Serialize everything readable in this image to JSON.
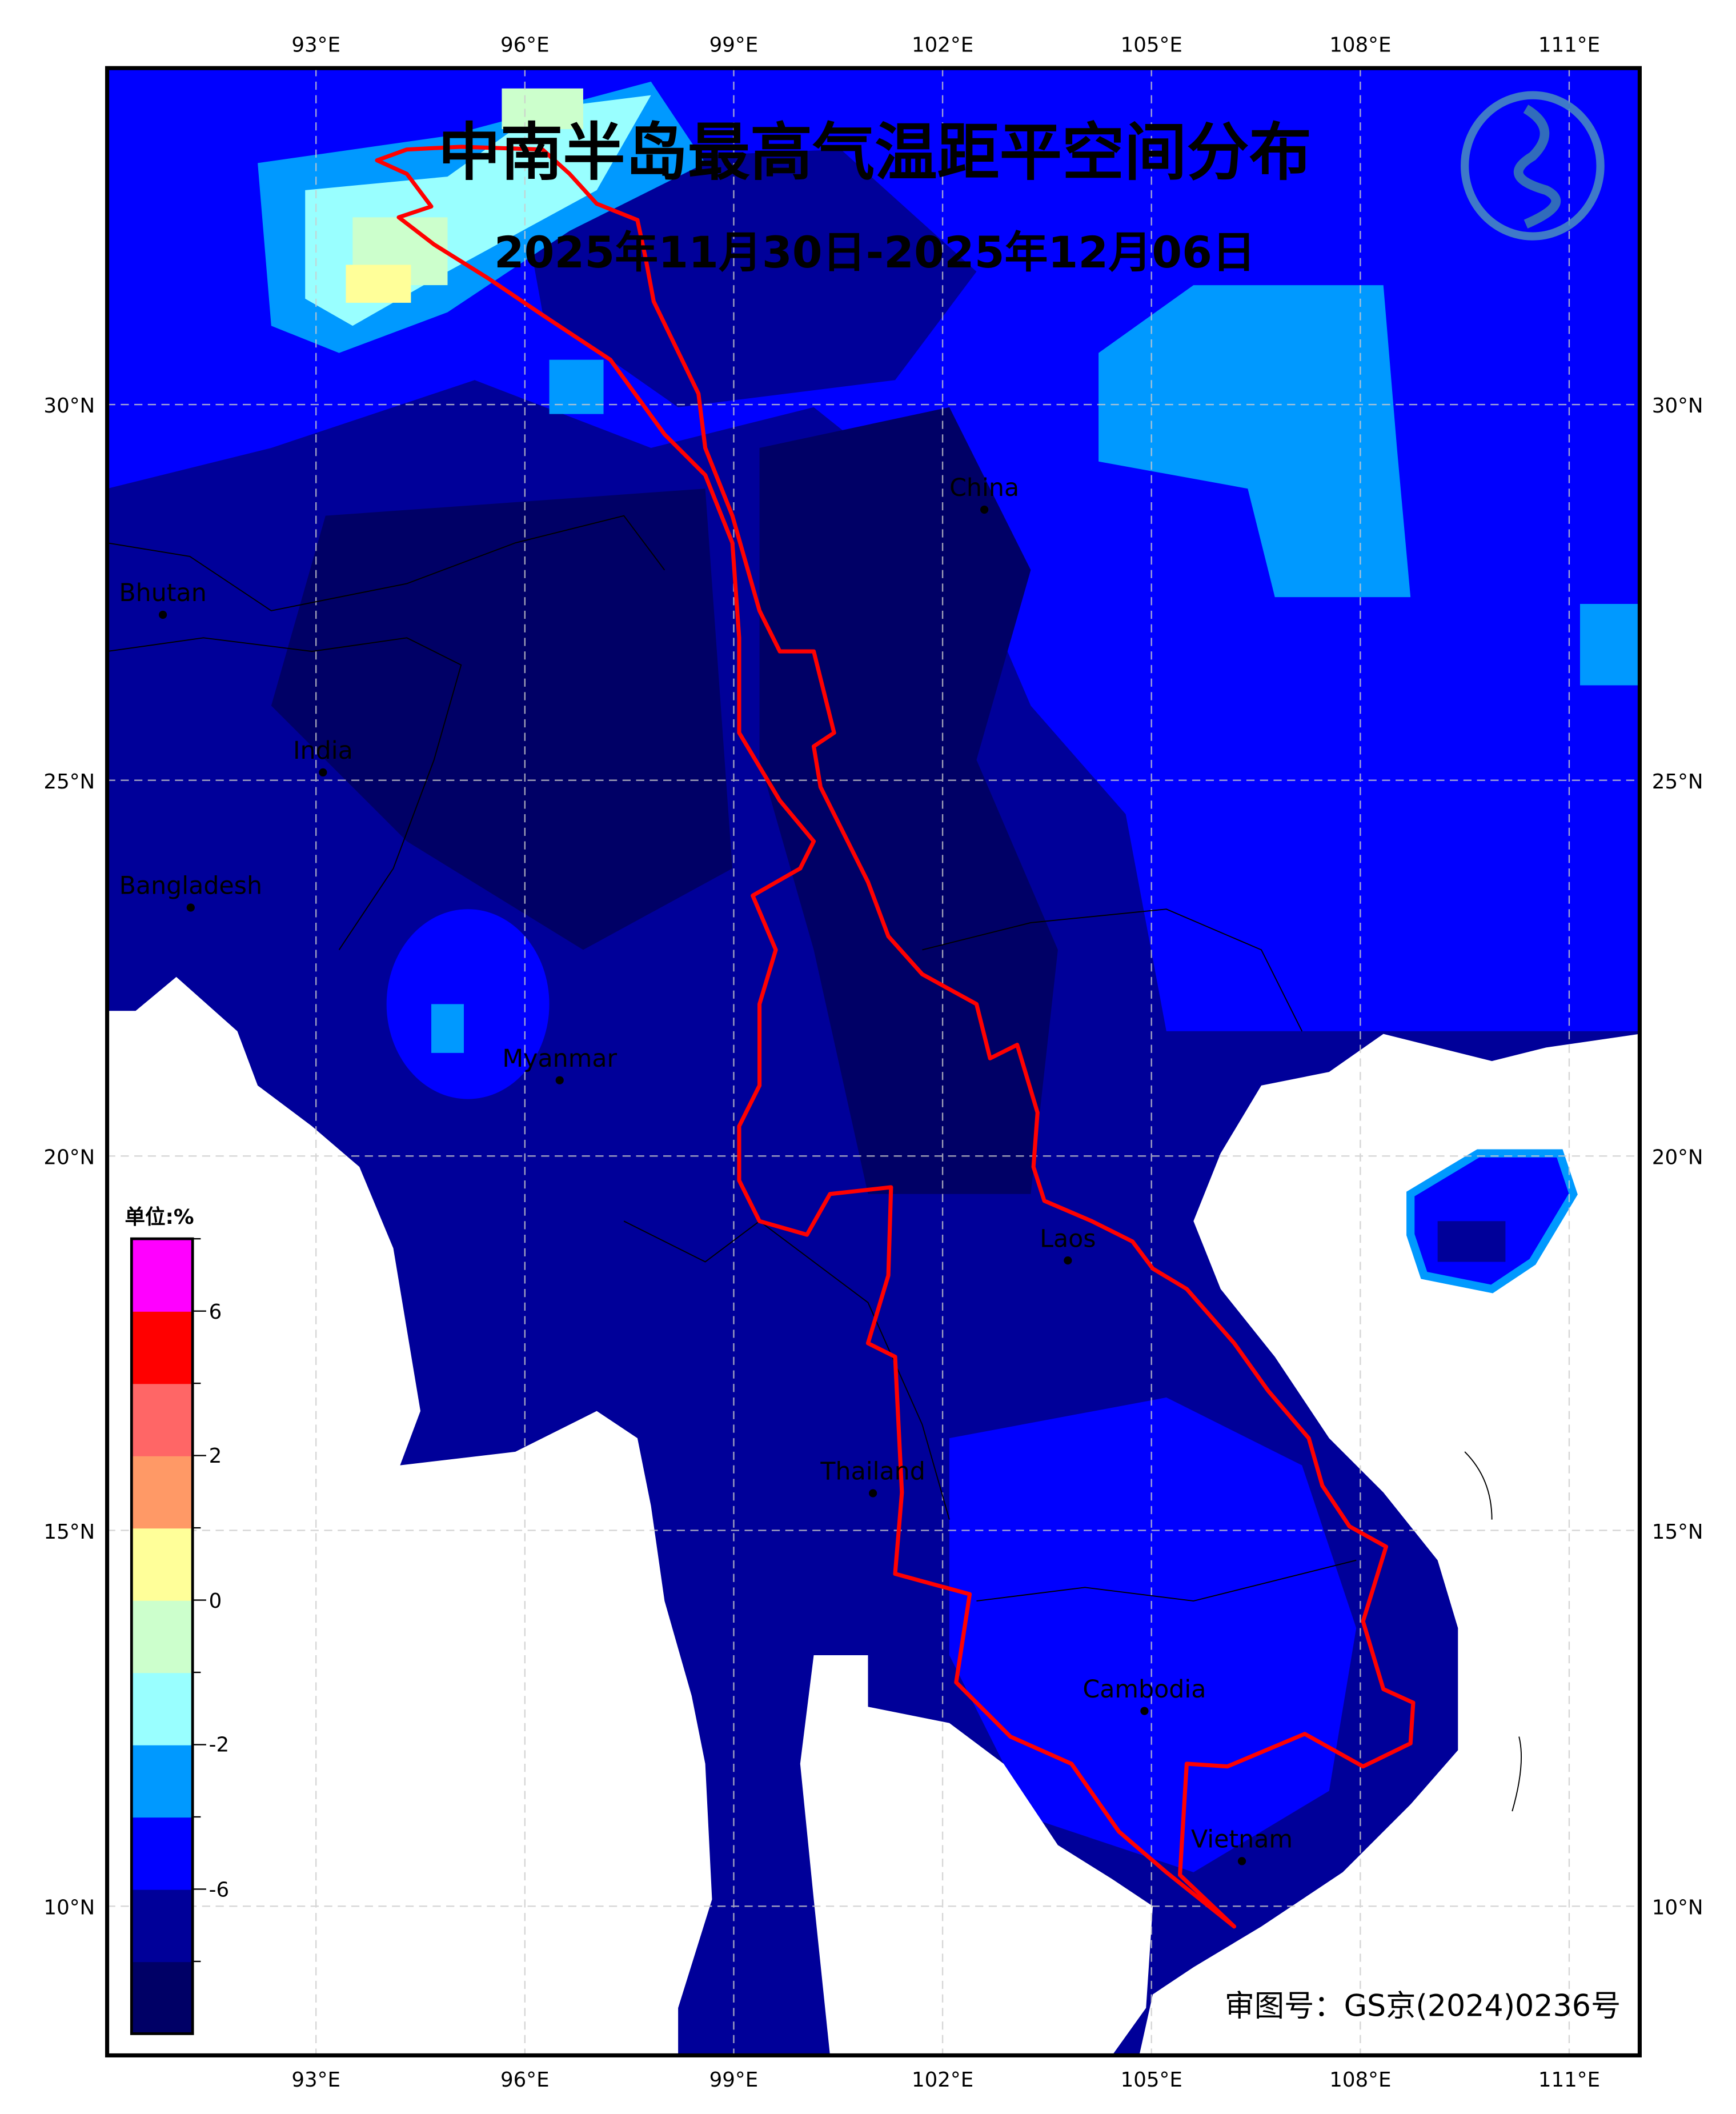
{
  "title": "中南半岛最高气温距平空间分布",
  "subtitle": "2025年11月30日-2025年12月06日",
  "review_number": "审图号：GS京(2024)0236号",
  "logo": {
    "icon": "dragon-emblem-icon"
  },
  "axes": {
    "lon_ticks": [
      "93°E",
      "96°E",
      "99°E",
      "102°E",
      "105°E",
      "108°E",
      "111°E"
    ],
    "lat_ticks": [
      "30°N",
      "25°N",
      "20°N",
      "15°N",
      "10°N"
    ],
    "grid": true
  },
  "places": [
    {
      "name": "China",
      "lon": 102.6,
      "lat": 28.6
    },
    {
      "name": "Bhutan",
      "lon": 90.8,
      "lat": 27.2
    },
    {
      "name": "India",
      "lon": 93.1,
      "lat": 25.1
    },
    {
      "name": "Bangladesh",
      "lon": 91.2,
      "lat": 23.3
    },
    {
      "name": "Myanmar",
      "lon": 96.5,
      "lat": 21.0
    },
    {
      "name": "Laos",
      "lon": 103.8,
      "lat": 18.6
    },
    {
      "name": "Thailand",
      "lon": 101.0,
      "lat": 15.5
    },
    {
      "name": "Cambodia",
      "lon": 104.9,
      "lat": 12.6
    },
    {
      "name": "Vietnam",
      "lon": 106.3,
      "lat": 10.6
    }
  ],
  "colorbar": {
    "unit_label": "单位:%",
    "colors": [
      "#000066",
      "#000099",
      "#0000ff",
      "#0099ff",
      "#99ffff",
      "#ccffcc",
      "#ffff99",
      "#ff9966",
      "#ff6666",
      "#ff0000",
      "#ff00ff"
    ],
    "tick_labels": [
      "-6",
      "-2",
      "0",
      "2",
      "6"
    ]
  },
  "colors": {
    "basin_boundary": "#ff0000",
    "no_data": "#ffffff"
  }
}
